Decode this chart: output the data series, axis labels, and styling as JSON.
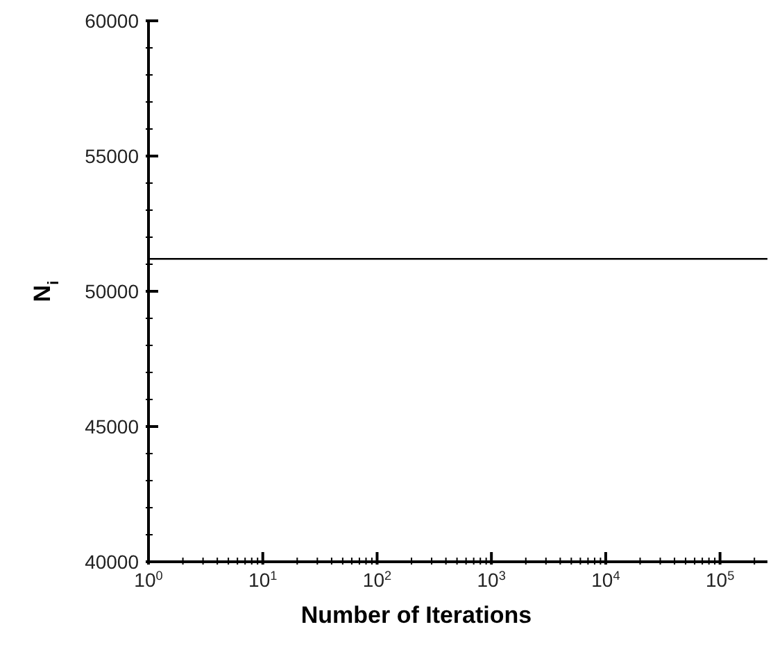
{
  "chart_data": {
    "type": "line",
    "xlabel": "Number of Iterations",
    "ylabel": "N$_{i}$",
    "x": [
      1,
      260000
    ],
    "series": [
      {
        "color": "#000000",
        "values": [
          51200,
          51200
        ]
      }
    ],
    "log": "x",
    "xlim": [
      1,
      260000
    ],
    "xticks": [
      {
        "value": 1,
        "label": "10$^{0}$"
      },
      {
        "value": 2,
        "label": null
      },
      {
        "value": 3,
        "label": null
      },
      {
        "value": 4,
        "label": null
      },
      {
        "value": 5,
        "label": null
      },
      {
        "value": 6,
        "label": null
      },
      {
        "value": 7,
        "label": null
      },
      {
        "value": 8,
        "label": null
      },
      {
        "value": 9,
        "label": null
      },
      {
        "value": 10,
        "label": "10$^{1}$"
      },
      {
        "value": 20,
        "label": null
      },
      {
        "value": 30,
        "label": null
      },
      {
        "value": 40,
        "label": null
      },
      {
        "value": 50,
        "label": null
      },
      {
        "value": 60,
        "label": null
      },
      {
        "value": 70,
        "label": null
      },
      {
        "value": 80,
        "label": null
      },
      {
        "value": 90,
        "label": null
      },
      {
        "value": 100,
        "label": "10$^{2}$"
      },
      {
        "value": 200,
        "label": null
      },
      {
        "value": 300,
        "label": null
      },
      {
        "value": 400,
        "label": null
      },
      {
        "value": 500,
        "label": null
      },
      {
        "value": 600,
        "label": null
      },
      {
        "value": 700,
        "label": null
      },
      {
        "value": 800,
        "label": null
      },
      {
        "value": 900,
        "label": null
      },
      {
        "value": 1000,
        "label": "10$^{3}$"
      },
      {
        "value": 2000,
        "label": null
      },
      {
        "value": 3000,
        "label": null
      },
      {
        "value": 4000,
        "label": null
      },
      {
        "value": 5000,
        "label": null
      },
      {
        "value": 6000,
        "label": null
      },
      {
        "value": 7000,
        "label": null
      },
      {
        "value": 8000,
        "label": null
      },
      {
        "value": 9000,
        "label": null
      },
      {
        "value": 10000,
        "label": "10$^{4}$"
      },
      {
        "value": 20000,
        "label": null
      },
      {
        "value": 30000,
        "label": null
      },
      {
        "value": 40000,
        "label": null
      },
      {
        "value": 50000,
        "label": null
      },
      {
        "value": 60000,
        "label": null
      },
      {
        "value": 70000,
        "label": null
      },
      {
        "value": 80000,
        "label": null
      },
      {
        "value": 90000,
        "label": null
      },
      {
        "value": 100000,
        "label": "10$^{5}$"
      },
      {
        "value": 200000,
        "label": null
      }
    ],
    "ylim": [
      40000,
      60000
    ],
    "yticks": [
      40000,
      {
        "value": 41000,
        "label": null
      },
      {
        "value": 42000,
        "label": null
      },
      {
        "value": 43000,
        "label": null
      },
      {
        "value": 44000,
        "label": null
      },
      45000,
      {
        "value": 46000,
        "label": null
      },
      {
        "value": 47000,
        "label": null
      },
      {
        "value": 48000,
        "label": null
      },
      {
        "value": 49000,
        "label": null
      },
      50000,
      {
        "value": 51000,
        "label": null
      },
      {
        "value": 52000,
        "label": null
      },
      {
        "value": 53000,
        "label": null
      },
      {
        "value": 54000,
        "label": null
      },
      55000,
      {
        "value": 56000,
        "label": null
      },
      {
        "value": 57000,
        "label": null
      },
      {
        "value": 58000,
        "label": null
      },
      {
        "value": 59000,
        "label": null
      },
      60000
    ],
    "marker": "none",
    "line_style": "solid"
  }
}
